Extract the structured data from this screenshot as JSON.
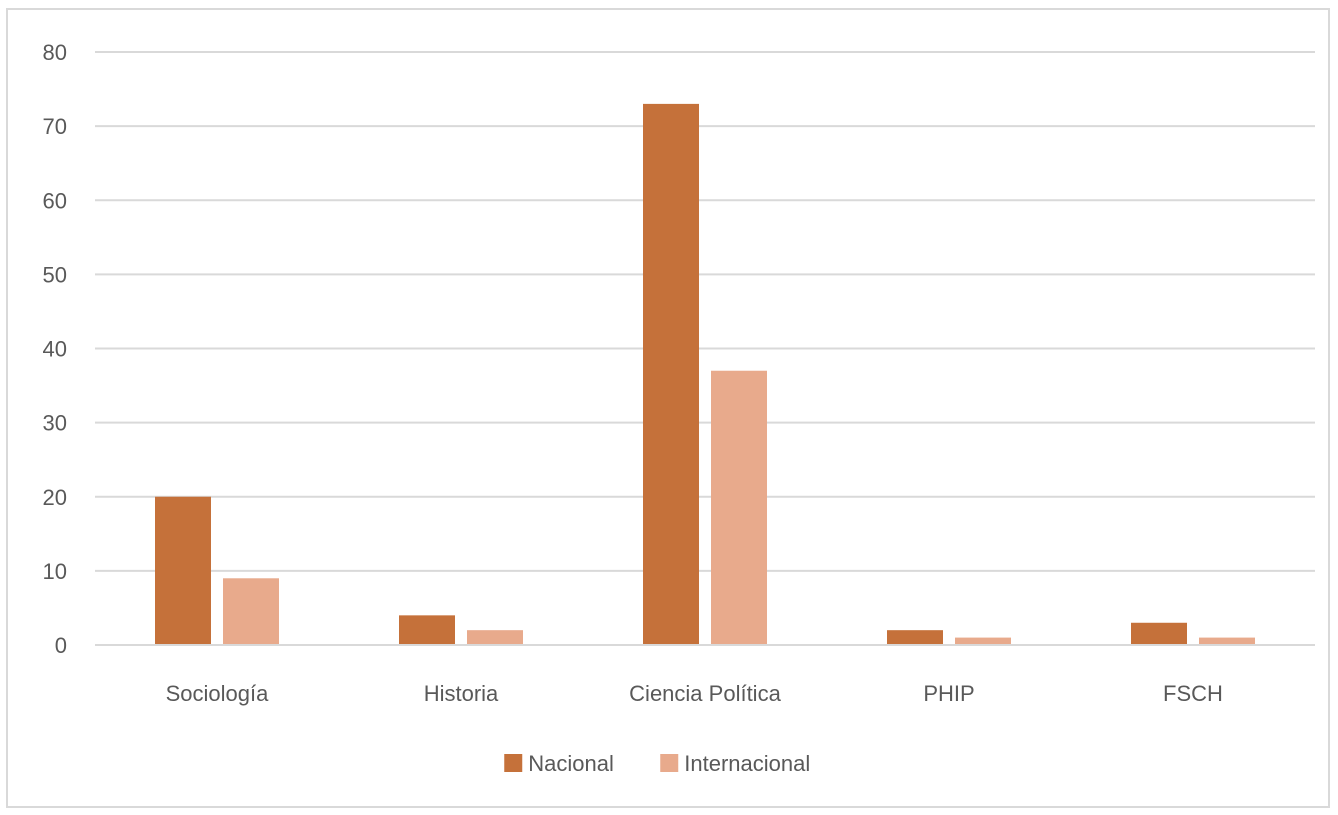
{
  "chart_data": {
    "type": "bar",
    "title": "",
    "xlabel": "",
    "ylabel": "",
    "categories": [
      "Sociología",
      "Historia",
      "Ciencia Política",
      "PHIP",
      "FSCH"
    ],
    "series": [
      {
        "name": "Nacional",
        "color": "#c5713a",
        "values": [
          20,
          4,
          73,
          2,
          3
        ]
      },
      {
        "name": "Internacional",
        "color": "#e8aa8c",
        "values": [
          9,
          2,
          37,
          1,
          1
        ]
      }
    ],
    "ylim": [
      0,
      80
    ],
    "yticks": [
      0,
      10,
      20,
      30,
      40,
      50,
      60,
      70,
      80
    ],
    "grid": true,
    "gridColor": "#d9d9d9",
    "legend_position": "bottom"
  }
}
